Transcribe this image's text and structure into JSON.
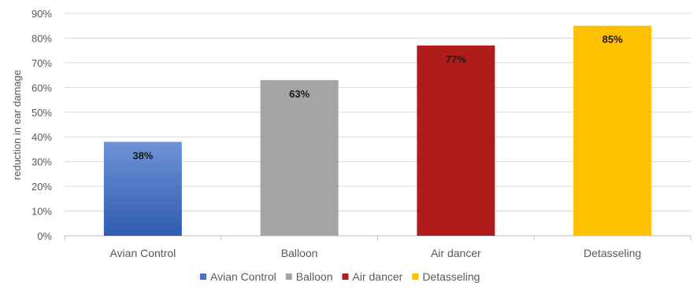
{
  "chart_data": {
    "type": "bar",
    "categories": [
      "Avian Control",
      "Balloon",
      "Air dancer",
      "Detasseling"
    ],
    "values": [
      38,
      63,
      77,
      85
    ],
    "value_labels": [
      "38%",
      "63%",
      "77%",
      "85%"
    ],
    "ylabel": "reduction in ear damage",
    "ylim": [
      0,
      90
    ],
    "yticks": [
      0,
      10,
      20,
      30,
      40,
      50,
      60,
      70,
      80,
      90
    ],
    "ytick_labels": [
      "0%",
      "10%",
      "20%",
      "30%",
      "40%",
      "50%",
      "60%",
      "70%",
      "80%",
      "90%"
    ],
    "colors": [
      "#4472C4",
      "#A5A5A5",
      "#B01C1C",
      "#FFC000"
    ],
    "grid": true,
    "legend": {
      "position": "bottom",
      "entries": [
        "Avian Control",
        "Balloon",
        "Air dancer",
        "Detasseling"
      ]
    }
  }
}
